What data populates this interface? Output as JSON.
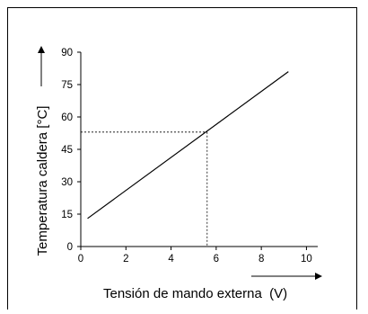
{
  "chart_data": {
    "type": "line",
    "xlabel": "Tensión de mando externa  (V)",
    "ylabel": "Temperatura caldera [°C]",
    "xlim": [
      0,
      10.5
    ],
    "ylim": [
      0,
      90
    ],
    "x_ticks": [
      "0",
      "2",
      "4",
      "6",
      "8",
      "10"
    ],
    "y_ticks": [
      "0",
      "15",
      "30",
      "45",
      "60",
      "75",
      "90"
    ],
    "series": [
      {
        "x": [
          0.3,
          9.2
        ],
        "y": [
          13,
          81
        ]
      }
    ],
    "reference_point": {
      "x": 5.6,
      "y": 53
    },
    "grid": false,
    "line_color": "#000000"
  }
}
